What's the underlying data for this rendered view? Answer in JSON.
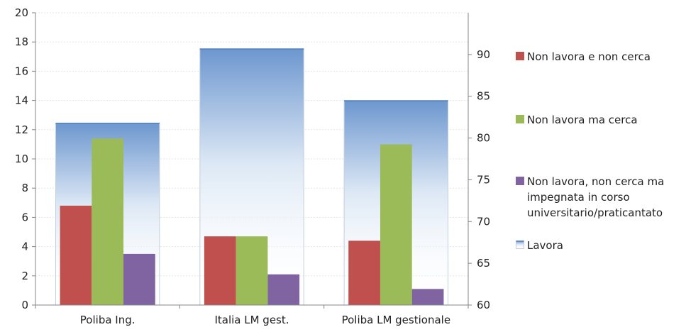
{
  "chart_data": {
    "type": "bar",
    "categories": [
      "Poliba Ing.",
      "Italia LM gest.",
      "Poliba LM gestionale"
    ],
    "series": [
      {
        "name": "Non lavora e non cerca",
        "axis": "left",
        "color": "#c0504d",
        "values": [
          6.8,
          4.7,
          4.4
        ]
      },
      {
        "name": "Non lavora ma cerca",
        "axis": "left",
        "color": "#9bbb59",
        "values": [
          11.4,
          4.7,
          11.0
        ]
      },
      {
        "name": "Non lavora, non cerca ma impegnata in corso universitario/praticantato",
        "axis": "left",
        "color": "#8064a2",
        "values": [
          3.5,
          2.1,
          1.1
        ]
      },
      {
        "name": "Lavora",
        "axis": "right",
        "color": "#4f81bd",
        "values": [
          81.8,
          90.7,
          84.5
        ]
      }
    ],
    "legend_lines": [
      [
        "Non lavora e non cerca"
      ],
      [
        "Non lavora ma cerca"
      ],
      [
        "Non lavora, non cerca ma",
        "impegnata in corso",
        "universitario/praticantato"
      ],
      [
        "Lavora"
      ]
    ],
    "y_left": {
      "min": 0,
      "max": 20,
      "ticks": [
        0,
        2,
        4,
        6,
        8,
        10,
        12,
        14,
        16,
        18,
        20
      ]
    },
    "y_right": {
      "min": 60,
      "max": 95,
      "ticks": [
        60,
        65,
        70,
        75,
        80,
        85,
        90
      ]
    },
    "grid": true,
    "legend_position": "right"
  }
}
